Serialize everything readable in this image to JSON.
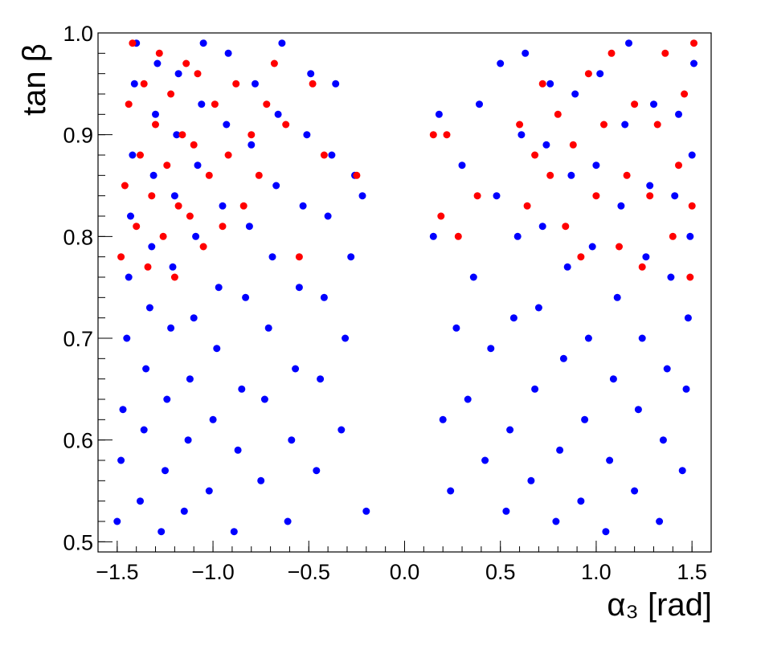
{
  "chart_data": {
    "type": "scatter",
    "title": "",
    "xlabel": "α₃ [rad]",
    "ylabel": "tan β",
    "xlim": [
      -1.6,
      1.6
    ],
    "ylim": [
      0.49,
      1.0
    ],
    "x_ticks": [
      -1.5,
      -1.0,
      -0.5,
      0.0,
      0.5,
      1.0,
      1.5
    ],
    "x_tick_labels": [
      "−1.5",
      "−1.0",
      "−0.5",
      "0.0",
      "0.5",
      "1.0",
      "1.5"
    ],
    "y_ticks": [
      0.5,
      0.6,
      0.7,
      0.8,
      0.9,
      1.0
    ],
    "y_tick_labels": [
      "0.5",
      "0.6",
      "0.7",
      "0.8",
      "0.9",
      "1.0"
    ],
    "grid": false,
    "legend": "none",
    "series": [
      {
        "color": "#0000ff",
        "points": [
          [
            -1.5,
            0.52
          ],
          [
            -1.48,
            0.58
          ],
          [
            -1.47,
            0.63
          ],
          [
            -1.45,
            0.7
          ],
          [
            -1.44,
            0.76
          ],
          [
            -1.43,
            0.82
          ],
          [
            -1.42,
            0.88
          ],
          [
            -1.41,
            0.95
          ],
          [
            -1.4,
            0.99
          ],
          [
            -1.38,
            0.54
          ],
          [
            -1.36,
            0.61
          ],
          [
            -1.35,
            0.67
          ],
          [
            -1.33,
            0.73
          ],
          [
            -1.32,
            0.79
          ],
          [
            -1.31,
            0.86
          ],
          [
            -1.3,
            0.92
          ],
          [
            -1.29,
            0.97
          ],
          [
            -1.27,
            0.51
          ],
          [
            -1.25,
            0.57
          ],
          [
            -1.24,
            0.64
          ],
          [
            -1.22,
            0.71
          ],
          [
            -1.21,
            0.77
          ],
          [
            -1.2,
            0.84
          ],
          [
            -1.19,
            0.9
          ],
          [
            -1.18,
            0.96
          ],
          [
            -1.15,
            0.53
          ],
          [
            -1.13,
            0.6
          ],
          [
            -1.12,
            0.66
          ],
          [
            -1.1,
            0.72
          ],
          [
            -1.09,
            0.8
          ],
          [
            -1.08,
            0.87
          ],
          [
            -1.06,
            0.93
          ],
          [
            -1.05,
            0.99
          ],
          [
            -1.02,
            0.55
          ],
          [
            -1.0,
            0.62
          ],
          [
            -0.98,
            0.69
          ],
          [
            -0.97,
            0.75
          ],
          [
            -0.95,
            0.83
          ],
          [
            -0.93,
            0.91
          ],
          [
            -0.92,
            0.98
          ],
          [
            -0.89,
            0.51
          ],
          [
            -0.87,
            0.59
          ],
          [
            -0.85,
            0.65
          ],
          [
            -0.83,
            0.74
          ],
          [
            -0.81,
            0.81
          ],
          [
            -0.8,
            0.89
          ],
          [
            -0.78,
            0.95
          ],
          [
            -0.75,
            0.56
          ],
          [
            -0.73,
            0.64
          ],
          [
            -0.71,
            0.71
          ],
          [
            -0.69,
            0.78
          ],
          [
            -0.67,
            0.85
          ],
          [
            -0.66,
            0.92
          ],
          [
            -0.64,
            0.99
          ],
          [
            -0.61,
            0.52
          ],
          [
            -0.59,
            0.6
          ],
          [
            -0.57,
            0.67
          ],
          [
            -0.55,
            0.75
          ],
          [
            -0.53,
            0.83
          ],
          [
            -0.51,
            0.9
          ],
          [
            -0.49,
            0.96
          ],
          [
            -0.46,
            0.57
          ],
          [
            -0.44,
            0.66
          ],
          [
            -0.42,
            0.74
          ],
          [
            -0.4,
            0.82
          ],
          [
            -0.38,
            0.88
          ],
          [
            -0.36,
            0.95
          ],
          [
            -0.33,
            0.61
          ],
          [
            -0.31,
            0.7
          ],
          [
            -0.28,
            0.78
          ],
          [
            -0.26,
            0.86
          ],
          [
            -0.22,
            0.84
          ],
          [
            -0.2,
            0.53
          ],
          [
            0.15,
            0.8
          ],
          [
            0.18,
            0.92
          ],
          [
            0.2,
            0.62
          ],
          [
            0.24,
            0.55
          ],
          [
            0.27,
            0.71
          ],
          [
            0.3,
            0.87
          ],
          [
            0.33,
            0.64
          ],
          [
            0.36,
            0.76
          ],
          [
            0.39,
            0.93
          ],
          [
            0.42,
            0.58
          ],
          [
            0.45,
            0.69
          ],
          [
            0.48,
            0.84
          ],
          [
            0.5,
            0.97
          ],
          [
            0.53,
            0.53
          ],
          [
            0.55,
            0.61
          ],
          [
            0.57,
            0.72
          ],
          [
            0.59,
            0.8
          ],
          [
            0.61,
            0.9
          ],
          [
            0.63,
            0.98
          ],
          [
            0.66,
            0.56
          ],
          [
            0.68,
            0.65
          ],
          [
            0.7,
            0.73
          ],
          [
            0.72,
            0.81
          ],
          [
            0.74,
            0.89
          ],
          [
            0.76,
            0.95
          ],
          [
            0.79,
            0.52
          ],
          [
            0.81,
            0.59
          ],
          [
            0.83,
            0.68
          ],
          [
            0.85,
            0.77
          ],
          [
            0.87,
            0.86
          ],
          [
            0.89,
            0.94
          ],
          [
            0.92,
            0.54
          ],
          [
            0.94,
            0.62
          ],
          [
            0.96,
            0.7
          ],
          [
            0.98,
            0.79
          ],
          [
            1.0,
            0.87
          ],
          [
            1.02,
            0.96
          ],
          [
            1.05,
            0.51
          ],
          [
            1.07,
            0.58
          ],
          [
            1.09,
            0.66
          ],
          [
            1.11,
            0.74
          ],
          [
            1.13,
            0.83
          ],
          [
            1.15,
            0.91
          ],
          [
            1.17,
            0.99
          ],
          [
            1.2,
            0.55
          ],
          [
            1.22,
            0.63
          ],
          [
            1.24,
            0.7
          ],
          [
            1.26,
            0.78
          ],
          [
            1.28,
            0.85
          ],
          [
            1.3,
            0.93
          ],
          [
            1.33,
            0.52
          ],
          [
            1.35,
            0.6
          ],
          [
            1.37,
            0.67
          ],
          [
            1.39,
            0.76
          ],
          [
            1.41,
            0.84
          ],
          [
            1.43,
            0.92
          ],
          [
            1.45,
            0.57
          ],
          [
            1.47,
            0.65
          ],
          [
            1.48,
            0.72
          ],
          [
            1.49,
            0.8
          ],
          [
            1.5,
            0.88
          ],
          [
            1.51,
            0.97
          ]
        ]
      },
      {
        "color": "#ff0000",
        "points": [
          [
            -1.48,
            0.78
          ],
          [
            -1.46,
            0.85
          ],
          [
            -1.44,
            0.93
          ],
          [
            -1.42,
            0.99
          ],
          [
            -1.4,
            0.81
          ],
          [
            -1.38,
            0.88
          ],
          [
            -1.36,
            0.95
          ],
          [
            -1.34,
            0.77
          ],
          [
            -1.32,
            0.84
          ],
          [
            -1.3,
            0.91
          ],
          [
            -1.28,
            0.98
          ],
          [
            -1.26,
            0.8
          ],
          [
            -1.24,
            0.87
          ],
          [
            -1.22,
            0.94
          ],
          [
            -1.2,
            0.76
          ],
          [
            -1.18,
            0.83
          ],
          [
            -1.16,
            0.9
          ],
          [
            -1.14,
            0.97
          ],
          [
            -1.12,
            0.82
          ],
          [
            -1.1,
            0.89
          ],
          [
            -1.08,
            0.96
          ],
          [
            -1.05,
            0.79
          ],
          [
            -1.02,
            0.86
          ],
          [
            -0.99,
            0.93
          ],
          [
            -0.95,
            0.81
          ],
          [
            -0.92,
            0.88
          ],
          [
            -0.88,
            0.95
          ],
          [
            -0.84,
            0.83
          ],
          [
            -0.8,
            0.9
          ],
          [
            -0.76,
            0.86
          ],
          [
            -0.72,
            0.93
          ],
          [
            -0.68,
            0.97
          ],
          [
            -0.62,
            0.91
          ],
          [
            -0.55,
            0.78
          ],
          [
            -0.48,
            0.95
          ],
          [
            -0.42,
            0.88
          ],
          [
            -0.25,
            0.86
          ],
          [
            0.15,
            0.9
          ],
          [
            0.19,
            0.82
          ],
          [
            0.22,
            0.9
          ],
          [
            0.28,
            0.8
          ],
          [
            0.38,
            0.84
          ],
          [
            0.6,
            0.91
          ],
          [
            0.64,
            0.83
          ],
          [
            0.68,
            0.88
          ],
          [
            0.72,
            0.95
          ],
          [
            0.76,
            0.86
          ],
          [
            0.8,
            0.92
          ],
          [
            0.84,
            0.81
          ],
          [
            0.88,
            0.89
          ],
          [
            0.92,
            0.78
          ],
          [
            0.96,
            0.96
          ],
          [
            1.0,
            0.84
          ],
          [
            1.04,
            0.91
          ],
          [
            1.08,
            0.98
          ],
          [
            1.12,
            0.79
          ],
          [
            1.16,
            0.86
          ],
          [
            1.2,
            0.93
          ],
          [
            1.24,
            0.77
          ],
          [
            1.28,
            0.84
          ],
          [
            1.32,
            0.91
          ],
          [
            1.36,
            0.98
          ],
          [
            1.4,
            0.8
          ],
          [
            1.43,
            0.87
          ],
          [
            1.46,
            0.94
          ],
          [
            1.49,
            0.76
          ],
          [
            1.5,
            0.83
          ],
          [
            1.51,
            0.99
          ]
        ]
      }
    ]
  }
}
